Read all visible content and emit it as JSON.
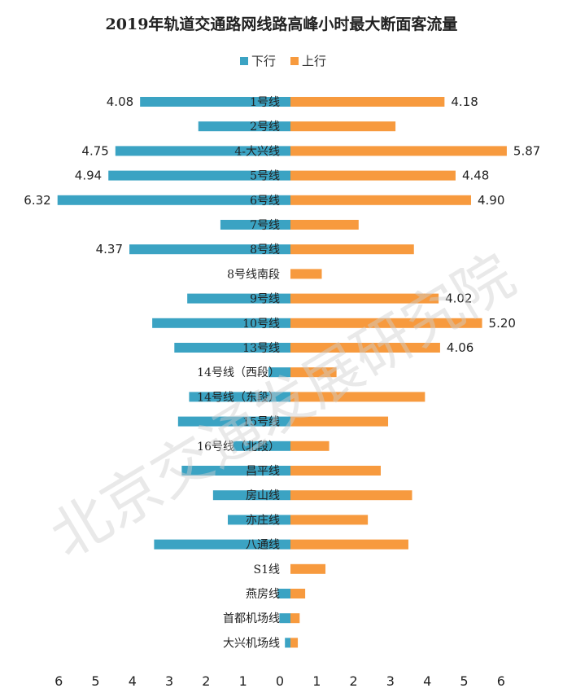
{
  "chart_data": {
    "type": "bar",
    "orientation": "horizontal-diverging",
    "title": "2019年轨道交通路网线路高峰小时最大断面客流量",
    "watermark": "北京交通发展研究院",
    "legend_position": "top",
    "colors": {
      "下行": "#3BA3C3",
      "上行": "#F79A3E"
    },
    "categories": [
      "1号线",
      "2号线",
      "4-大兴线",
      "5号线",
      "6号线",
      "7号线",
      "8号线",
      "8号线南段",
      "9号线",
      "10号线",
      "13号线",
      "14号线（西段）",
      "14号线（东段）",
      "15号线",
      "16号线（北段）",
      "昌平线",
      "房山线",
      "亦庄线",
      "八通线",
      "S1线",
      "燕房线",
      "首都机场线",
      "大兴机场线"
    ],
    "series": [
      {
        "name": "下行",
        "values": [
          4.08,
          2.5,
          4.75,
          4.94,
          6.32,
          1.9,
          4.37,
          0.0,
          2.8,
          3.75,
          3.15,
          0.6,
          2.75,
          3.05,
          1.55,
          2.95,
          2.1,
          1.7,
          3.7,
          0.0,
          0.35,
          0.3,
          0.15
        ]
      },
      {
        "name": "上行",
        "values": [
          4.18,
          2.85,
          5.87,
          4.48,
          4.9,
          1.85,
          3.35,
          0.85,
          4.02,
          5.2,
          4.06,
          1.25,
          3.65,
          2.65,
          1.05,
          2.45,
          3.3,
          2.1,
          3.2,
          0.95,
          0.4,
          0.25,
          0.2
        ]
      }
    ],
    "data_labels": [
      {
        "category": "1号线",
        "下行": "4.08",
        "上行": "4.18"
      },
      {
        "category": "4-大兴线",
        "下行": "4.75",
        "上行": "5.87"
      },
      {
        "category": "5号线",
        "下行": "4.94",
        "上行": "4.48"
      },
      {
        "category": "6号线",
        "下行": "6.32",
        "上行": "4.90"
      },
      {
        "category": "8号线",
        "下行": "4.37"
      },
      {
        "category": "9号线",
        "上行": "4.02"
      },
      {
        "category": "10号线",
        "上行": "5.20"
      },
      {
        "category": "13号线",
        "上行": "4.06"
      }
    ],
    "x_ticks_left": [
      "6",
      "5",
      "4",
      "3",
      "2",
      "1"
    ],
    "x_ticks_right": [
      "0",
      "1",
      "2",
      "3",
      "4",
      "5",
      "6"
    ],
    "xlim": [
      -6.4,
      6.4
    ],
    "grid": false
  }
}
